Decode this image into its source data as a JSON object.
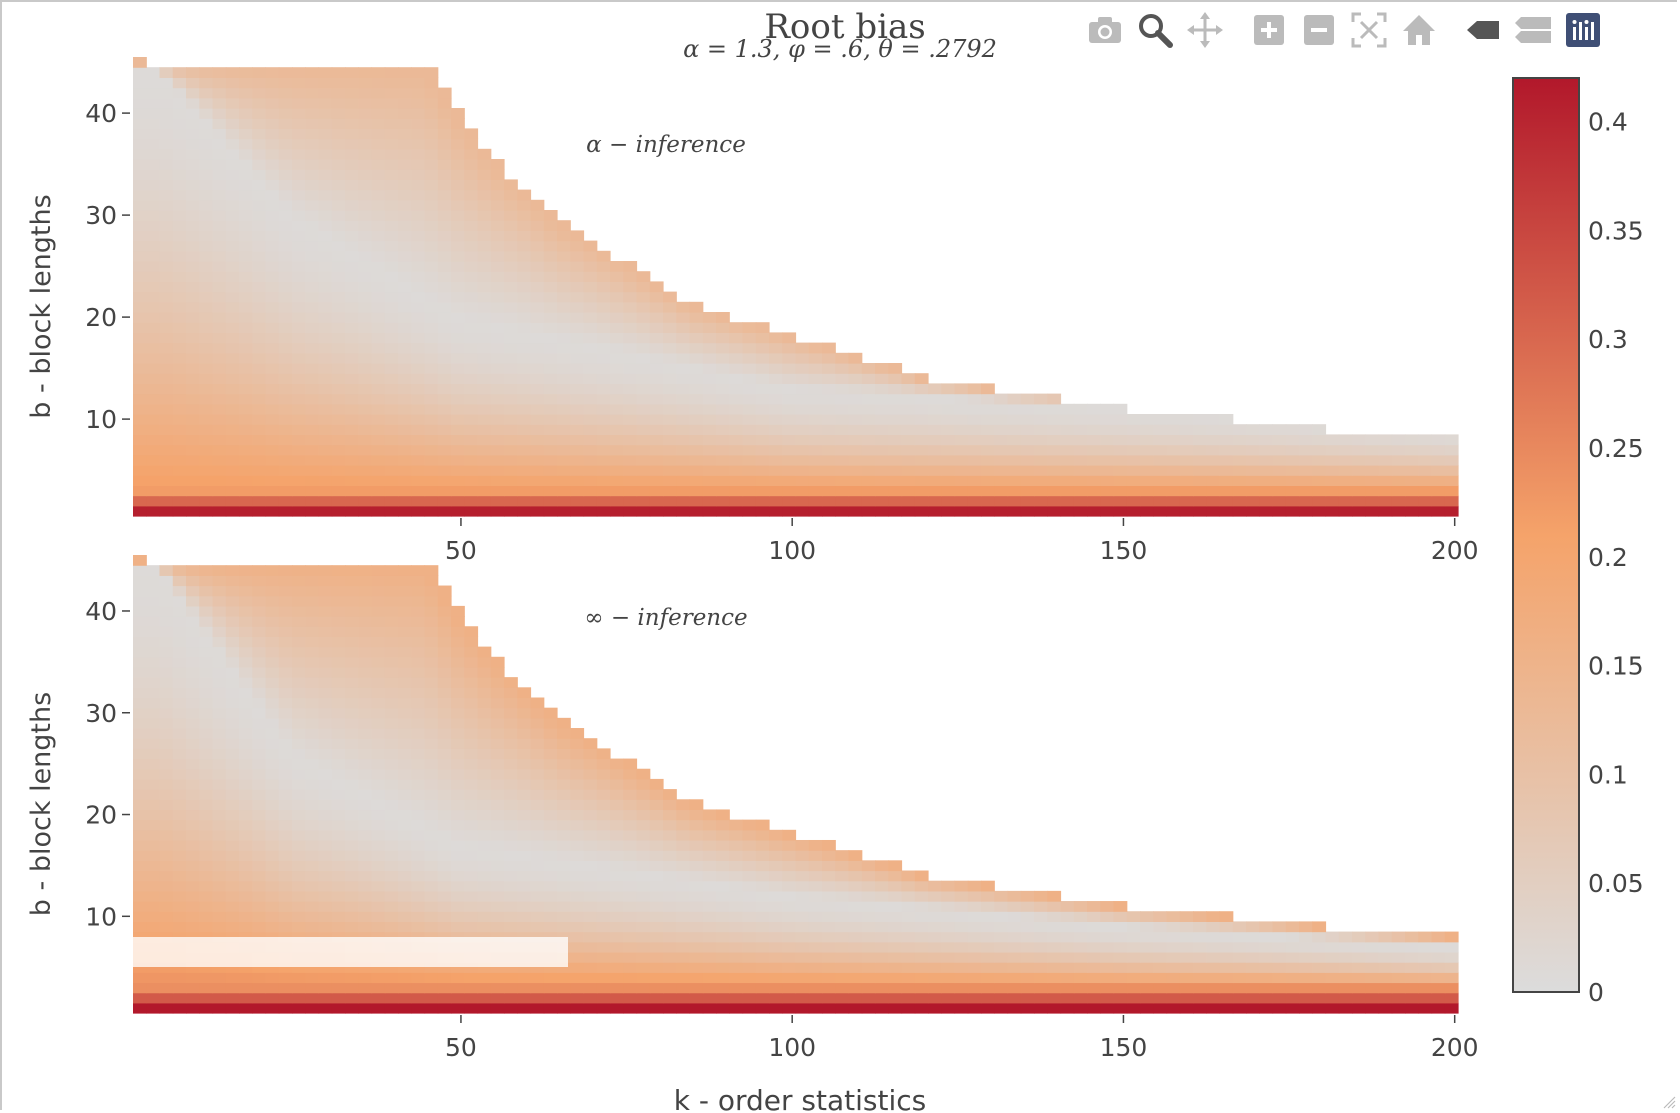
{
  "title": "Root bias",
  "subtitle": "α = 1.3, φ = .6, θ = .2792",
  "modebar": {
    "icons": [
      "camera-icon",
      "zoom-icon",
      "pan-icon",
      "zoom-in-icon",
      "zoom-out-icon",
      "autoscale-icon",
      "home-icon",
      "hover-closest-icon",
      "hover-compare-icon",
      "plotly-logo-icon"
    ]
  },
  "colorbar": {
    "ticks": [
      "0",
      "0.05",
      "0.1",
      "0.15",
      "0.2",
      "0.25",
      "0.3",
      "0.35",
      "0.4"
    ],
    "colors": [
      "#dcdcdc",
      "#f5a36a",
      "#b2182b"
    ]
  },
  "chart_data": {
    "type": "heatmap",
    "title": "Root bias",
    "subtitle": "α = 1.3, φ = .6, θ = .2792",
    "xlabel": "k - order statistics",
    "ylabel": "b - block lengths",
    "xlim": [
      1,
      200
    ],
    "ylim": [
      1,
      45
    ],
    "x_ticks": [
      50,
      100,
      150,
      200
    ],
    "y_ticks": [
      10,
      20,
      30,
      40
    ],
    "zlim": [
      0,
      0.42
    ],
    "colorscale": [
      "#dcdcdc",
      "#f5a36a",
      "#b2182b"
    ],
    "valid_region_upper_boundary": {
      "k": [
        1,
        45,
        50,
        55,
        60,
        65,
        70,
        75,
        80,
        85,
        90,
        95,
        100,
        105,
        110,
        115,
        120,
        130,
        140,
        150,
        165,
        180,
        200
      ],
      "b_max": [
        45,
        44,
        39,
        35,
        32,
        29,
        27,
        25,
        23,
        21,
        20,
        19,
        18,
        17,
        16,
        15,
        14,
        13,
        12,
        11,
        10,
        9,
        8
      ]
    },
    "panels": [
      {
        "annotation": "α − inference",
        "bias_at_b1": 0.41,
        "bias_at_b2": 0.3,
        "bias_at_b3": 0.22,
        "minimum_bias_valley_b": {
          "k": [
            5,
            25,
            50,
            100,
            150,
            200
          ],
          "b": [
            44,
            30,
            20,
            13,
            11,
            9
          ]
        },
        "bias_at_upper_edge": 0.12
      },
      {
        "annotation": "∞ − inference",
        "bias_at_b1": 0.42,
        "bias_at_b2": 0.32,
        "bias_at_b3": 0.24,
        "minimum_bias_valley_b": {
          "k": [
            5,
            25,
            50,
            100,
            150,
            200
          ],
          "b": [
            44,
            26,
            17,
            12,
            9,
            7
          ]
        },
        "bias_at_upper_edge": 0.15
      }
    ]
  }
}
